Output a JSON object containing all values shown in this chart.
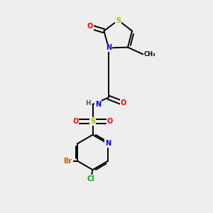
{
  "bg_color": "#eeeeee",
  "bond_color": "#000000",
  "bond_lw": 1.4,
  "atom_colors": {
    "S": "#b8b800",
    "O": "#ff0000",
    "N": "#0000ff",
    "Br": "#cc6600",
    "Cl": "#00aa00",
    "H": "#555555",
    "C": "#000000"
  },
  "font_size": 7.0
}
